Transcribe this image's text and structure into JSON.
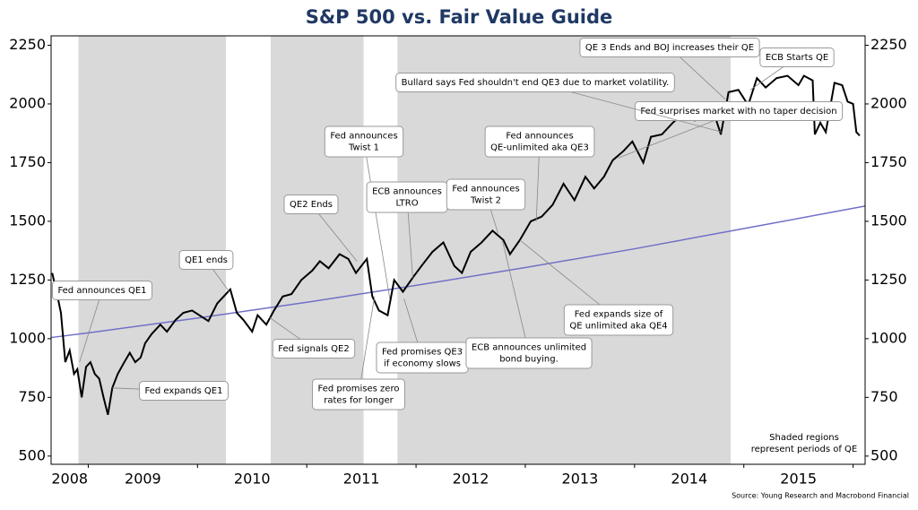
{
  "chart_data": {
    "type": "line",
    "title": "S&P 500 vs. Fair Value Guide",
    "source": "Source: Young Research and Macrobond Financial",
    "note": [
      "Shaded regions",
      "represent periods of QE"
    ],
    "xlim": [
      2008.66,
      2016.11
    ],
    "xticks": [
      {
        "value": 2008.5,
        "label": "2008"
      },
      {
        "value": 2009.5,
        "label": "2009"
      },
      {
        "value": 2010.5,
        "label": "2010"
      },
      {
        "value": 2011.5,
        "label": "2011"
      },
      {
        "value": 2012.5,
        "label": "2012"
      },
      {
        "value": 2013.5,
        "label": "2013"
      },
      {
        "value": 2014.5,
        "label": "2014"
      },
      {
        "value": 2015.5,
        "label": "2015"
      }
    ],
    "ylim": [
      465,
      2290
    ],
    "yticks": [
      500,
      750,
      1000,
      1250,
      1500,
      1750,
      2000,
      2250
    ],
    "right_axis": true,
    "shade_color": "#d9d9d9",
    "shaded_regions": [
      [
        2008.91,
        2010.26
      ],
      [
        2010.67,
        2011.52
      ],
      [
        2011.83,
        2014.88
      ]
    ],
    "series": [
      {
        "color": "#000000",
        "x": [
          2008.67,
          2008.71,
          2008.75,
          2008.79,
          2008.83,
          2008.87,
          2008.9,
          2008.94,
          2008.98,
          2009.02,
          2009.06,
          2009.1,
          2009.14,
          2009.18,
          2009.22,
          2009.27,
          2009.33,
          2009.38,
          2009.43,
          2009.48,
          2009.52,
          2009.58,
          2009.66,
          2009.72,
          2009.8,
          2009.87,
          2009.95,
          2010.05,
          2010.1,
          2010.18,
          2010.3,
          2010.36,
          2010.42,
          2010.5,
          2010.55,
          2010.63,
          2010.7,
          2010.78,
          2010.86,
          2010.95,
          2011.05,
          2011.12,
          2011.2,
          2011.3,
          2011.38,
          2011.45,
          2011.55,
          2011.6,
          2011.66,
          2011.74,
          2011.8,
          2011.88,
          2011.97,
          2012.05,
          2012.15,
          2012.25,
          2012.35,
          2012.42,
          2012.5,
          2012.6,
          2012.7,
          2012.8,
          2012.86,
          2012.95,
          2013.05,
          2013.15,
          2013.25,
          2013.35,
          2013.45,
          2013.55,
          2013.63,
          2013.72,
          2013.8,
          2013.9,
          2013.98,
          2014.08,
          2014.15,
          2014.25,
          2014.35,
          2014.45,
          2014.55,
          2014.62,
          2014.72,
          2014.79,
          2014.86,
          2014.95,
          2015.04,
          2015.12,
          2015.2,
          2015.3,
          2015.4,
          2015.5,
          2015.55,
          2015.63,
          2015.65,
          2015.7,
          2015.75,
          2015.83,
          2015.9,
          2015.95,
          2016.0,
          2016.03,
          2016.06
        ],
        "values": [
          1280,
          1200,
          1110,
          900,
          950,
          850,
          870,
          750,
          880,
          900,
          850,
          830,
          750,
          676,
          790,
          850,
          900,
          940,
          900,
          920,
          980,
          1020,
          1060,
          1030,
          1080,
          1110,
          1120,
          1090,
          1075,
          1150,
          1210,
          1110,
          1080,
          1030,
          1100,
          1060,
          1120,
          1180,
          1190,
          1250,
          1290,
          1330,
          1300,
          1360,
          1340,
          1280,
          1340,
          1180,
          1120,
          1100,
          1250,
          1200,
          1260,
          1310,
          1370,
          1410,
          1310,
          1280,
          1370,
          1410,
          1460,
          1420,
          1360,
          1420,
          1500,
          1520,
          1570,
          1660,
          1590,
          1690,
          1640,
          1690,
          1760,
          1800,
          1840,
          1750,
          1860,
          1870,
          1920,
          1960,
          1930,
          2000,
          1970,
          1870,
          2050,
          2060,
          1995,
          2110,
          2070,
          2110,
          2120,
          2080,
          2120,
          2100,
          1870,
          1920,
          1880,
          2090,
          2080,
          2010,
          2000,
          1880,
          1865
        ]
      },
      {
        "color": "#7070c8",
        "x": [
          2008.66,
          2009,
          2010,
          2011,
          2012,
          2013,
          2014,
          2015,
          2016.11
        ],
        "values": [
          1005,
          1025,
          1088,
          1155,
          1227,
          1303,
          1383,
          1469,
          1565
        ]
      }
    ],
    "annotations": [
      {
        "text": [
          "Fed announces QE1"
        ],
        "x": 2008.92,
        "y": 900
      },
      {
        "text": [
          "Fed expands QE1"
        ],
        "x": 2009.22,
        "y": 790
      },
      {
        "text": [
          "QE1 ends"
        ],
        "x": 2010.29,
        "y": 1200
      },
      {
        "text": [
          "Fed signals QE2"
        ],
        "x": 2010.66,
        "y": 1090
      },
      {
        "text": [
          "QE2 Ends"
        ],
        "x": 2011.46,
        "y": 1330
      },
      {
        "text": [
          "Fed announces",
          "Twist 1"
        ],
        "x": 2011.76,
        "y": 1170
      },
      {
        "text": [
          "Fed promises zero",
          "rates for longer"
        ],
        "x": 2011.62,
        "y": 1180
      },
      {
        "text": [
          "ECB announces",
          "LTRO"
        ],
        "x": 2011.97,
        "y": 1260
      },
      {
        "text": [
          "Fed promises QE3",
          "if economy slows"
        ],
        "x": 2011.89,
        "y": 1170
      },
      {
        "text": [
          "Fed announces",
          "Twist 2"
        ],
        "x": 2012.75,
        "y": 1450
      },
      {
        "text": [
          "ECB announces unlimited",
          "bond buying."
        ],
        "x": 2012.79,
        "y": 1420
      },
      {
        "text": [
          "Fed announces",
          "QE-unlimited aka QE3"
        ],
        "x": 2013.1,
        "y": 1500
      },
      {
        "text": [
          "Fed expands size of",
          "QE unlimited aka QE4"
        ],
        "x": 2012.95,
        "y": 1420
      },
      {
        "text": [
          "Fed surprises market with no taper decision"
        ],
        "x": 2013.85,
        "y": 1770
      },
      {
        "text": [
          "Bullard says Fed shouldn't end QE3 due to market volatility."
        ],
        "x": 2014.8,
        "y": 1880
      },
      {
        "text": [
          "QE 3 Ends and BOJ increases their QE"
        ],
        "x": 2014.83,
        "y": 2020
      },
      {
        "text": [
          "ECB Starts QE"
        ],
        "x": 2015.06,
        "y": 2060
      }
    ]
  }
}
